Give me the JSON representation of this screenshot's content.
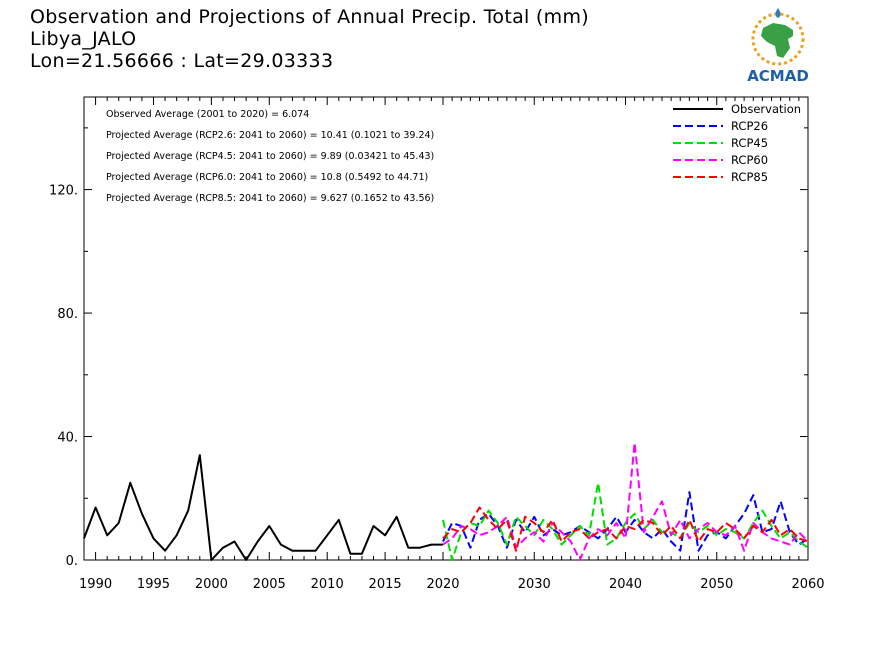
{
  "header": {
    "title_line1": "Observation and Projections of Annual Precip. Total (mm)",
    "title_line2": "Libya_JALO",
    "title_line3": "Lon=21.56666 : Lat=29.03333"
  },
  "logo": {
    "text": "ACMAD",
    "colors": {
      "africa": "#3aa046",
      "ring": "#f0a020",
      "drop": "#2b7cc4",
      "text": "#1f5fa8"
    }
  },
  "colors": {
    "Observation": "#000000",
    "RCP26": "#0000ff",
    "RCP45": "#00dd00",
    "RCP60": "#ff00ff",
    "RCP85": "#ff0000"
  },
  "chart_data": {
    "type": "line",
    "title": "Observation and Projections of Annual Precip. Total (mm)",
    "xlabel": "",
    "ylabel": "",
    "xlim": [
      1989,
      2060
    ],
    "ylim": [
      0,
      150
    ],
    "xticks": [
      1990,
      1995,
      2000,
      2005,
      2010,
      2015,
      2020,
      2030,
      2040,
      2050,
      2060
    ],
    "xtick_labels": [
      "1990",
      "1995",
      "2000",
      "2005",
      "2010",
      "2015",
      "2020",
      "2030",
      "2040",
      "2050",
      "2060"
    ],
    "yticks": [
      0,
      40,
      80,
      120
    ],
    "ytick_labels": [
      "0.",
      "40.",
      "80.",
      "120."
    ],
    "annotations": [
      "Observed Average (2001 to 2020) = 6.074",
      "Projected Average (RCP2.6: 2041 to 2060) = 10.41 (0.1021 to 39.24)",
      "Projected Average (RCP4.5: 2041 to 2060) = 9.89 (0.03421 to 45.43)",
      "Projected Average (RCP6.0: 2041 to 2060) = 10.8 (0.5492 to 44.71)",
      "Projected Average (RCP8.5: 2041 to 2060) = 9.627 (0.1652 to 43.56)"
    ],
    "legend_position": "top-right",
    "series": [
      {
        "name": "Observation",
        "dash": "solid",
        "x": [
          1989,
          1990,
          1991,
          1992,
          1993,
          1994,
          1995,
          1996,
          1997,
          1998,
          1999,
          2000,
          2001,
          2002,
          2003,
          2004,
          2005,
          2006,
          2007,
          2008,
          2009,
          2010,
          2011,
          2012,
          2013,
          2014,
          2015,
          2016,
          2017,
          2018,
          2019,
          2020
        ],
        "y": [
          7,
          17,
          8,
          12,
          25,
          15,
          7,
          3,
          8,
          16,
          34,
          0,
          4,
          6,
          0,
          6,
          11,
          5,
          3,
          3,
          3,
          8,
          13,
          2,
          2,
          11,
          8,
          14,
          4,
          4,
          5,
          5
        ]
      },
      {
        "name": "RCP26",
        "dash": "dashed",
        "x": [
          2020,
          2021,
          2022,
          2023,
          2024,
          2025,
          2026,
          2027,
          2028,
          2029,
          2030,
          2031,
          2032,
          2033,
          2034,
          2035,
          2036,
          2037,
          2038,
          2039,
          2040,
          2041,
          2042,
          2043,
          2044,
          2045,
          2046,
          2047,
          2048,
          2049,
          2050,
          2051,
          2052,
          2053,
          2054,
          2055,
          2056,
          2057,
          2058,
          2059,
          2060
        ],
        "y": [
          6,
          12,
          11,
          4,
          13,
          15,
          11,
          4,
          13,
          9,
          14,
          8,
          10,
          8,
          9,
          11,
          9,
          7,
          10,
          14,
          9,
          13,
          9,
          7,
          10,
          6,
          3,
          22,
          3,
          8,
          9,
          7,
          11,
          15,
          21,
          9,
          10,
          19,
          9,
          5,
          7
        ]
      },
      {
        "name": "RCP45",
        "dash": "dashed",
        "x": [
          2020,
          2021,
          2022,
          2023,
          2024,
          2025,
          2026,
          2027,
          2028,
          2029,
          2030,
          2031,
          2032,
          2033,
          2034,
          2035,
          2036,
          2037,
          2038,
          2039,
          2040,
          2041,
          2042,
          2043,
          2044,
          2045,
          2046,
          2047,
          2048,
          2049,
          2050,
          2051,
          2052,
          2053,
          2054,
          2055,
          2056,
          2057,
          2058,
          2059,
          2060
        ],
        "y": [
          13,
          0,
          9,
          12,
          11,
          16,
          12,
          5,
          14,
          11,
          8,
          13,
          10,
          5,
          8,
          11,
          8,
          25,
          5,
          7,
          12,
          15,
          10,
          13,
          9,
          9,
          7,
          12,
          9,
          11,
          8,
          10,
          9,
          7,
          12,
          16,
          11,
          7,
          9,
          6,
          4
        ]
      },
      {
        "name": "RCP60",
        "dash": "dashed",
        "x": [
          2020,
          2021,
          2022,
          2023,
          2024,
          2025,
          2026,
          2027,
          2028,
          2029,
          2030,
          2031,
          2032,
          2033,
          2034,
          2035,
          2036,
          2037,
          2038,
          2039,
          2040,
          2041,
          2042,
          2043,
          2044,
          2045,
          2046,
          2047,
          2048,
          2049,
          2050,
          2051,
          2052,
          2053,
          2054,
          2055,
          2056,
          2057,
          2058,
          2059,
          2060
        ],
        "y": [
          5,
          7,
          11,
          10,
          8,
          9,
          11,
          14,
          4,
          7,
          9,
          6,
          12,
          9,
          6,
          0,
          7,
          10,
          8,
          12,
          7,
          38,
          9,
          14,
          19,
          8,
          13,
          7,
          10,
          12,
          9,
          8,
          11,
          3,
          12,
          9,
          7,
          6,
          5,
          9,
          6
        ]
      },
      {
        "name": "RCP85",
        "dash": "dashed",
        "x": [
          2020,
          2021,
          2022,
          2023,
          2024,
          2025,
          2026,
          2027,
          2028,
          2029,
          2030,
          2031,
          2032,
          2033,
          2034,
          2035,
          2036,
          2037,
          2038,
          2039,
          2040,
          2041,
          2042,
          2043,
          2044,
          2045,
          2046,
          2047,
          2048,
          2049,
          2050,
          2051,
          2052,
          2053,
          2054,
          2055,
          2056,
          2057,
          2058,
          2059,
          2060
        ],
        "y": [
          7,
          10,
          9,
          12,
          17,
          13,
          10,
          13,
          3,
          14,
          12,
          9,
          13,
          6,
          9,
          10,
          7,
          9,
          10,
          7,
          11,
          10,
          13,
          12,
          8,
          11,
          7,
          13,
          6,
          10,
          9,
          12,
          10,
          7,
          11,
          9,
          13,
          8,
          10,
          7,
          6
        ]
      }
    ]
  }
}
